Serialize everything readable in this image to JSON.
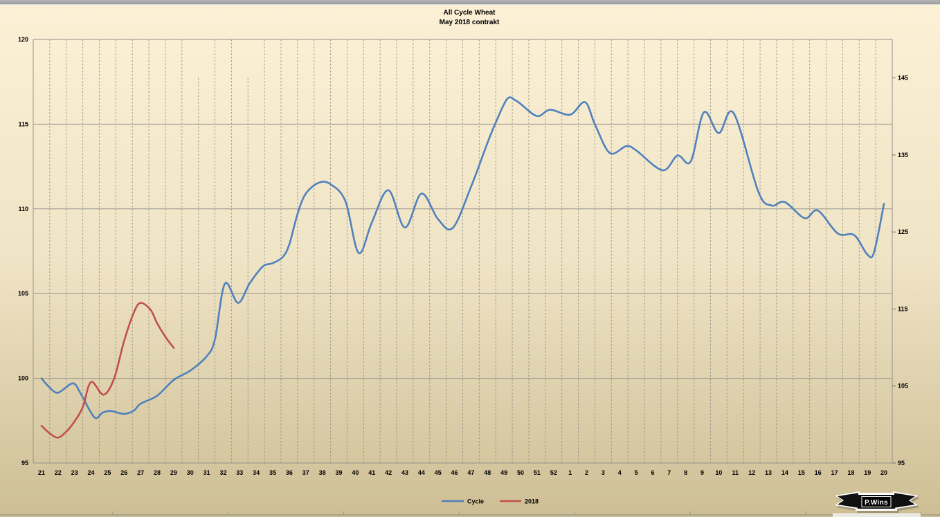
{
  "chart_data": {
    "type": "line",
    "title": "All Cycle Wheat",
    "subtitle": "May 2018 contrakt",
    "x_labels": [
      "21",
      "22",
      "23",
      "24",
      "25",
      "26",
      "27",
      "28",
      "29",
      "30",
      "31",
      "32",
      "33",
      "34",
      "35",
      "36",
      "37",
      "38",
      "39",
      "40",
      "41",
      "42",
      "43",
      "44",
      "45",
      "46",
      "47",
      "48",
      "49",
      "50",
      "51",
      "52",
      "1",
      "2",
      "3",
      "4",
      "5",
      "6",
      "7",
      "8",
      "9",
      "10",
      "11",
      "12",
      "13",
      "14",
      "15",
      "16",
      "17",
      "18",
      "19",
      "20"
    ],
    "left_axis": {
      "min": 95,
      "max": 120,
      "ticks": [
        120,
        115,
        110,
        105,
        100,
        95
      ]
    },
    "right_axis": {
      "min": 95,
      "max": 150,
      "ticks": [
        145,
        135,
        125,
        115,
        105,
        95
      ]
    },
    "grid": {
      "vertical_dashed": true,
      "short_boundaries": [
        10,
        13
      ],
      "short_top_value": 145
    },
    "legend_position": "bottom",
    "watermark": "P.Wins",
    "series": [
      {
        "name": "Cycle",
        "color": "#4F81BD",
        "points": [
          [
            0,
            100.0
          ],
          [
            0.45,
            99.5
          ],
          [
            1,
            99.15
          ],
          [
            1.9,
            99.7
          ],
          [
            2.4,
            99.05
          ],
          [
            3.2,
            97.7
          ],
          [
            3.7,
            97.97
          ],
          [
            4.2,
            98.07
          ],
          [
            5,
            97.9
          ],
          [
            5.6,
            98.1
          ],
          [
            6,
            98.5
          ],
          [
            7,
            98.97
          ],
          [
            8,
            99.9
          ],
          [
            9,
            100.45
          ],
          [
            10,
            101.3
          ],
          [
            10.5,
            102.3
          ],
          [
            11.1,
            105.58
          ],
          [
            11.9,
            104.45
          ],
          [
            12.6,
            105.6
          ],
          [
            13.4,
            106.6
          ],
          [
            14,
            106.8
          ],
          [
            14.6,
            107.15
          ],
          [
            15,
            107.9
          ],
          [
            15.5,
            109.7
          ],
          [
            16,
            110.9
          ],
          [
            16.8,
            111.55
          ],
          [
            17.5,
            111.45
          ],
          [
            18.4,
            110.45
          ],
          [
            19.2,
            107.4
          ],
          [
            20,
            109.2
          ],
          [
            21,
            111.1
          ],
          [
            22,
            108.9
          ],
          [
            23,
            110.9
          ],
          [
            24,
            109.4
          ],
          [
            24.9,
            108.88
          ],
          [
            26,
            111.3
          ],
          [
            27,
            113.9
          ],
          [
            27.5,
            115.1
          ],
          [
            28.2,
            116.5
          ],
          [
            28.7,
            116.4
          ],
          [
            29,
            116.2
          ],
          [
            30,
            115.48
          ],
          [
            30.8,
            115.85
          ],
          [
            32,
            115.56
          ],
          [
            32.9,
            116.3
          ],
          [
            33.5,
            115.0
          ],
          [
            34.4,
            113.3
          ],
          [
            35.4,
            113.7
          ],
          [
            36,
            113.45
          ],
          [
            37.6,
            112.28
          ],
          [
            38.5,
            113.15
          ],
          [
            39.3,
            112.8
          ],
          [
            40.1,
            115.7
          ],
          [
            41,
            114.47
          ],
          [
            41.9,
            115.65
          ],
          [
            43.4,
            111.0
          ],
          [
            44.2,
            110.2
          ],
          [
            45,
            110.4
          ],
          [
            46.2,
            109.45
          ],
          [
            47,
            109.9
          ],
          [
            48.2,
            108.55
          ],
          [
            49.2,
            108.45
          ],
          [
            50,
            107.3
          ],
          [
            50.4,
            107.45
          ],
          [
            51,
            110.3
          ]
        ]
      },
      {
        "name": "2018",
        "color": "#C0504D",
        "points": [
          [
            0,
            97.2
          ],
          [
            0.5,
            96.75
          ],
          [
            1,
            96.5
          ],
          [
            1.5,
            96.85
          ],
          [
            2,
            97.45
          ],
          [
            2.5,
            98.3
          ],
          [
            3,
            99.78
          ],
          [
            3.76,
            99.03
          ],
          [
            4.4,
            100.0
          ],
          [
            5,
            102.2
          ],
          [
            5.6,
            103.9
          ],
          [
            6,
            104.45
          ],
          [
            6.6,
            104.05
          ],
          [
            7,
            103.25
          ],
          [
            7.5,
            102.45
          ],
          [
            8,
            101.8
          ]
        ]
      }
    ]
  }
}
